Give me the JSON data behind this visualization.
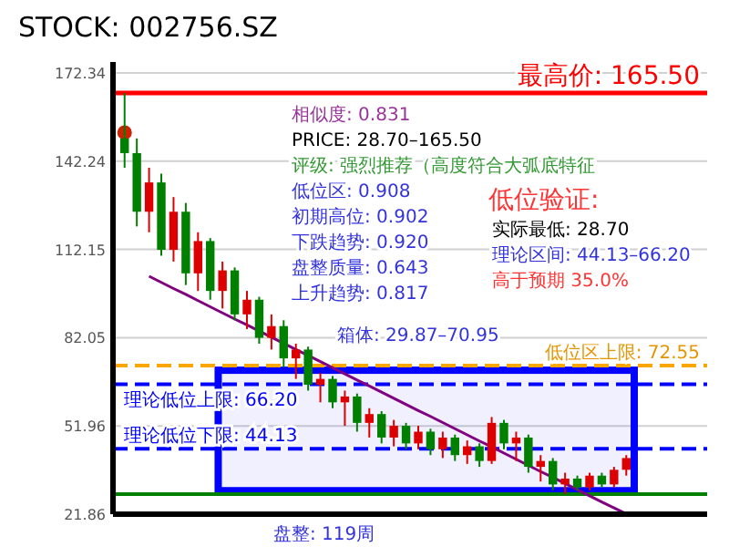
{
  "chart_data": {
    "type": "candlestick",
    "title": "STOCK: 002756.SZ",
    "categories": [
      null,
      null,
      null,
      null,
      null,
      null,
      null,
      null,
      null,
      null,
      null,
      null,
      null,
      null,
      null,
      null,
      null,
      null,
      null,
      null,
      null,
      null,
      null,
      null,
      null,
      null,
      null,
      null,
      null,
      null,
      null,
      null,
      null,
      null,
      null,
      null,
      null,
      null,
      null,
      null,
      null,
      null
    ],
    "ohlc": [
      [
        150,
        165.5,
        140,
        145
      ],
      [
        145,
        150,
        120,
        125
      ],
      [
        125,
        140,
        118,
        135
      ],
      [
        135,
        138,
        110,
        112
      ],
      [
        112,
        130,
        108,
        125
      ],
      [
        125,
        128,
        100,
        104
      ],
      [
        104,
        118,
        98,
        115
      ],
      [
        115,
        116,
        95,
        98
      ],
      [
        98,
        108,
        92,
        105
      ],
      [
        105,
        106,
        88,
        90
      ],
      [
        90,
        98,
        85,
        95
      ],
      [
        95,
        96,
        80,
        82
      ],
      [
        82,
        90,
        78,
        86
      ],
      [
        86,
        88,
        72,
        75
      ],
      [
        75,
        80,
        68,
        78
      ],
      [
        78,
        79,
        64,
        66
      ],
      [
        66,
        70,
        60,
        68
      ],
      [
        68,
        69,
        58,
        60
      ],
      [
        60,
        64,
        52,
        62
      ],
      [
        62,
        63,
        50,
        53
      ],
      [
        53,
        58,
        48,
        56
      ],
      [
        56,
        57,
        46,
        48
      ],
      [
        48,
        54,
        45,
        52
      ],
      [
        52,
        53,
        44,
        46
      ],
      [
        46,
        52,
        44,
        50
      ],
      [
        50,
        51,
        42,
        44
      ],
      [
        44,
        50,
        41,
        48
      ],
      [
        48,
        49,
        40,
        42
      ],
      [
        42,
        47,
        39,
        45
      ],
      [
        45,
        46,
        38,
        40
      ],
      [
        40,
        55,
        39,
        53
      ],
      [
        53,
        54,
        44,
        46
      ],
      [
        46,
        50,
        40,
        48
      ],
      [
        48,
        49,
        36,
        38
      ],
      [
        38,
        42,
        33,
        40
      ],
      [
        40,
        41,
        30,
        32
      ],
      [
        32,
        36,
        28.7,
        34
      ],
      [
        34,
        35,
        30,
        31
      ],
      [
        31,
        36,
        30,
        35
      ],
      [
        35,
        36,
        31,
        32
      ],
      [
        32,
        38,
        31,
        37
      ],
      [
        37,
        42,
        35,
        41
      ]
    ],
    "colors": [
      "#008000",
      "#008000",
      "#dd0000",
      "#008000",
      "#dd0000",
      "#008000",
      "#dd0000",
      "#008000",
      "#dd0000",
      "#008000",
      "#dd0000",
      "#008000",
      "#dd0000",
      "#008000",
      "#dd0000",
      "#008000",
      "#dd0000",
      "#008000",
      "#dd0000",
      "#008000",
      "#dd0000",
      "#008000",
      "#dd0000",
      "#008000",
      "#dd0000",
      "#008000",
      "#dd0000",
      "#008000",
      "#dd0000",
      "#008000",
      "#dd0000",
      "#008000",
      "#dd0000",
      "#008000",
      "#dd0000",
      "#008000",
      "#dd0000",
      "#008000",
      "#dd0000",
      "#008000",
      "#dd0000",
      "#dd0000"
    ],
    "series": [
      {
        "type": "line",
        "color": "#800080",
        "values": [
          null,
          null,
          103.0,
          100.9,
          98.8,
          96.8,
          94.7,
          92.6,
          90.5,
          88.4,
          86.4,
          84.3,
          82.2,
          80.1,
          78.0,
          76.0,
          73.9,
          71.8,
          69.7,
          67.6,
          65.6,
          63.5,
          61.4,
          59.3,
          57.2,
          55.2,
          53.1,
          51.0,
          48.9,
          46.8,
          44.8,
          42.7,
          40.6,
          38.5,
          36.4,
          34.4,
          32.3,
          30.2,
          28.1,
          26.0,
          24.0,
          22.0
        ]
      },
      {
        "type": "scatter",
        "color": "#cc2200",
        "values": [
          152,
          null,
          null,
          null,
          null,
          null,
          null,
          null,
          null,
          null,
          null,
          null,
          null,
          null,
          null,
          null,
          null,
          null,
          null,
          null,
          null,
          null,
          null,
          null,
          null,
          null,
          null,
          null,
          null,
          null,
          null,
          null,
          null,
          null,
          null,
          null,
          null,
          null,
          null,
          null,
          null,
          null
        ]
      }
    ],
    "ylim": [
      21.86,
      172.34
    ],
    "yticks": [
      21.86,
      51.96,
      82.05,
      112.15,
      142.24,
      172.34
    ],
    "grid": "y",
    "ref_lines": [
      {
        "axis": "y",
        "value": 165.5,
        "label": "最高价: 165.50",
        "color": "#ff0000",
        "line_style": "solid"
      },
      {
        "axis": "y",
        "value": 72.55,
        "label": "低位区上限: 72.55",
        "color": "#ffa500",
        "line_style": "dashed"
      },
      {
        "axis": "y",
        "value": 66.2,
        "label": "理论低位上限: 66.20",
        "color": "#0000ff",
        "line_style": "dashed"
      },
      {
        "axis": "y",
        "value": 44.13,
        "label": "理论低位下限: 44.13",
        "color": "#0000ff",
        "line_style": "dashed"
      },
      {
        "axis": "y",
        "value": 28.7,
        "color": "#008000",
        "line_style": "solid"
      }
    ],
    "bands": [
      {
        "axis": "y",
        "from": 29.87,
        "to": 70.95,
        "label": "箱体: 29.87–70.95",
        "color": "#0000ff"
      }
    ],
    "annotations": [
      "相似度: 0.831",
      "PRICE: 28.70–165.50",
      "评级: 强烈推荐（高度符合大弧底特征",
      "低位区: 0.908",
      "初期高位: 0.902",
      "下跌趋势: 0.920",
      "盘整质量: 0.643",
      "上升趋势: 0.817",
      "低位验证:",
      "实际最低: 28.70",
      "理论区间: 44.13–66.20",
      "高于预期 35.0%",
      "盘整: 119周"
    ]
  }
}
